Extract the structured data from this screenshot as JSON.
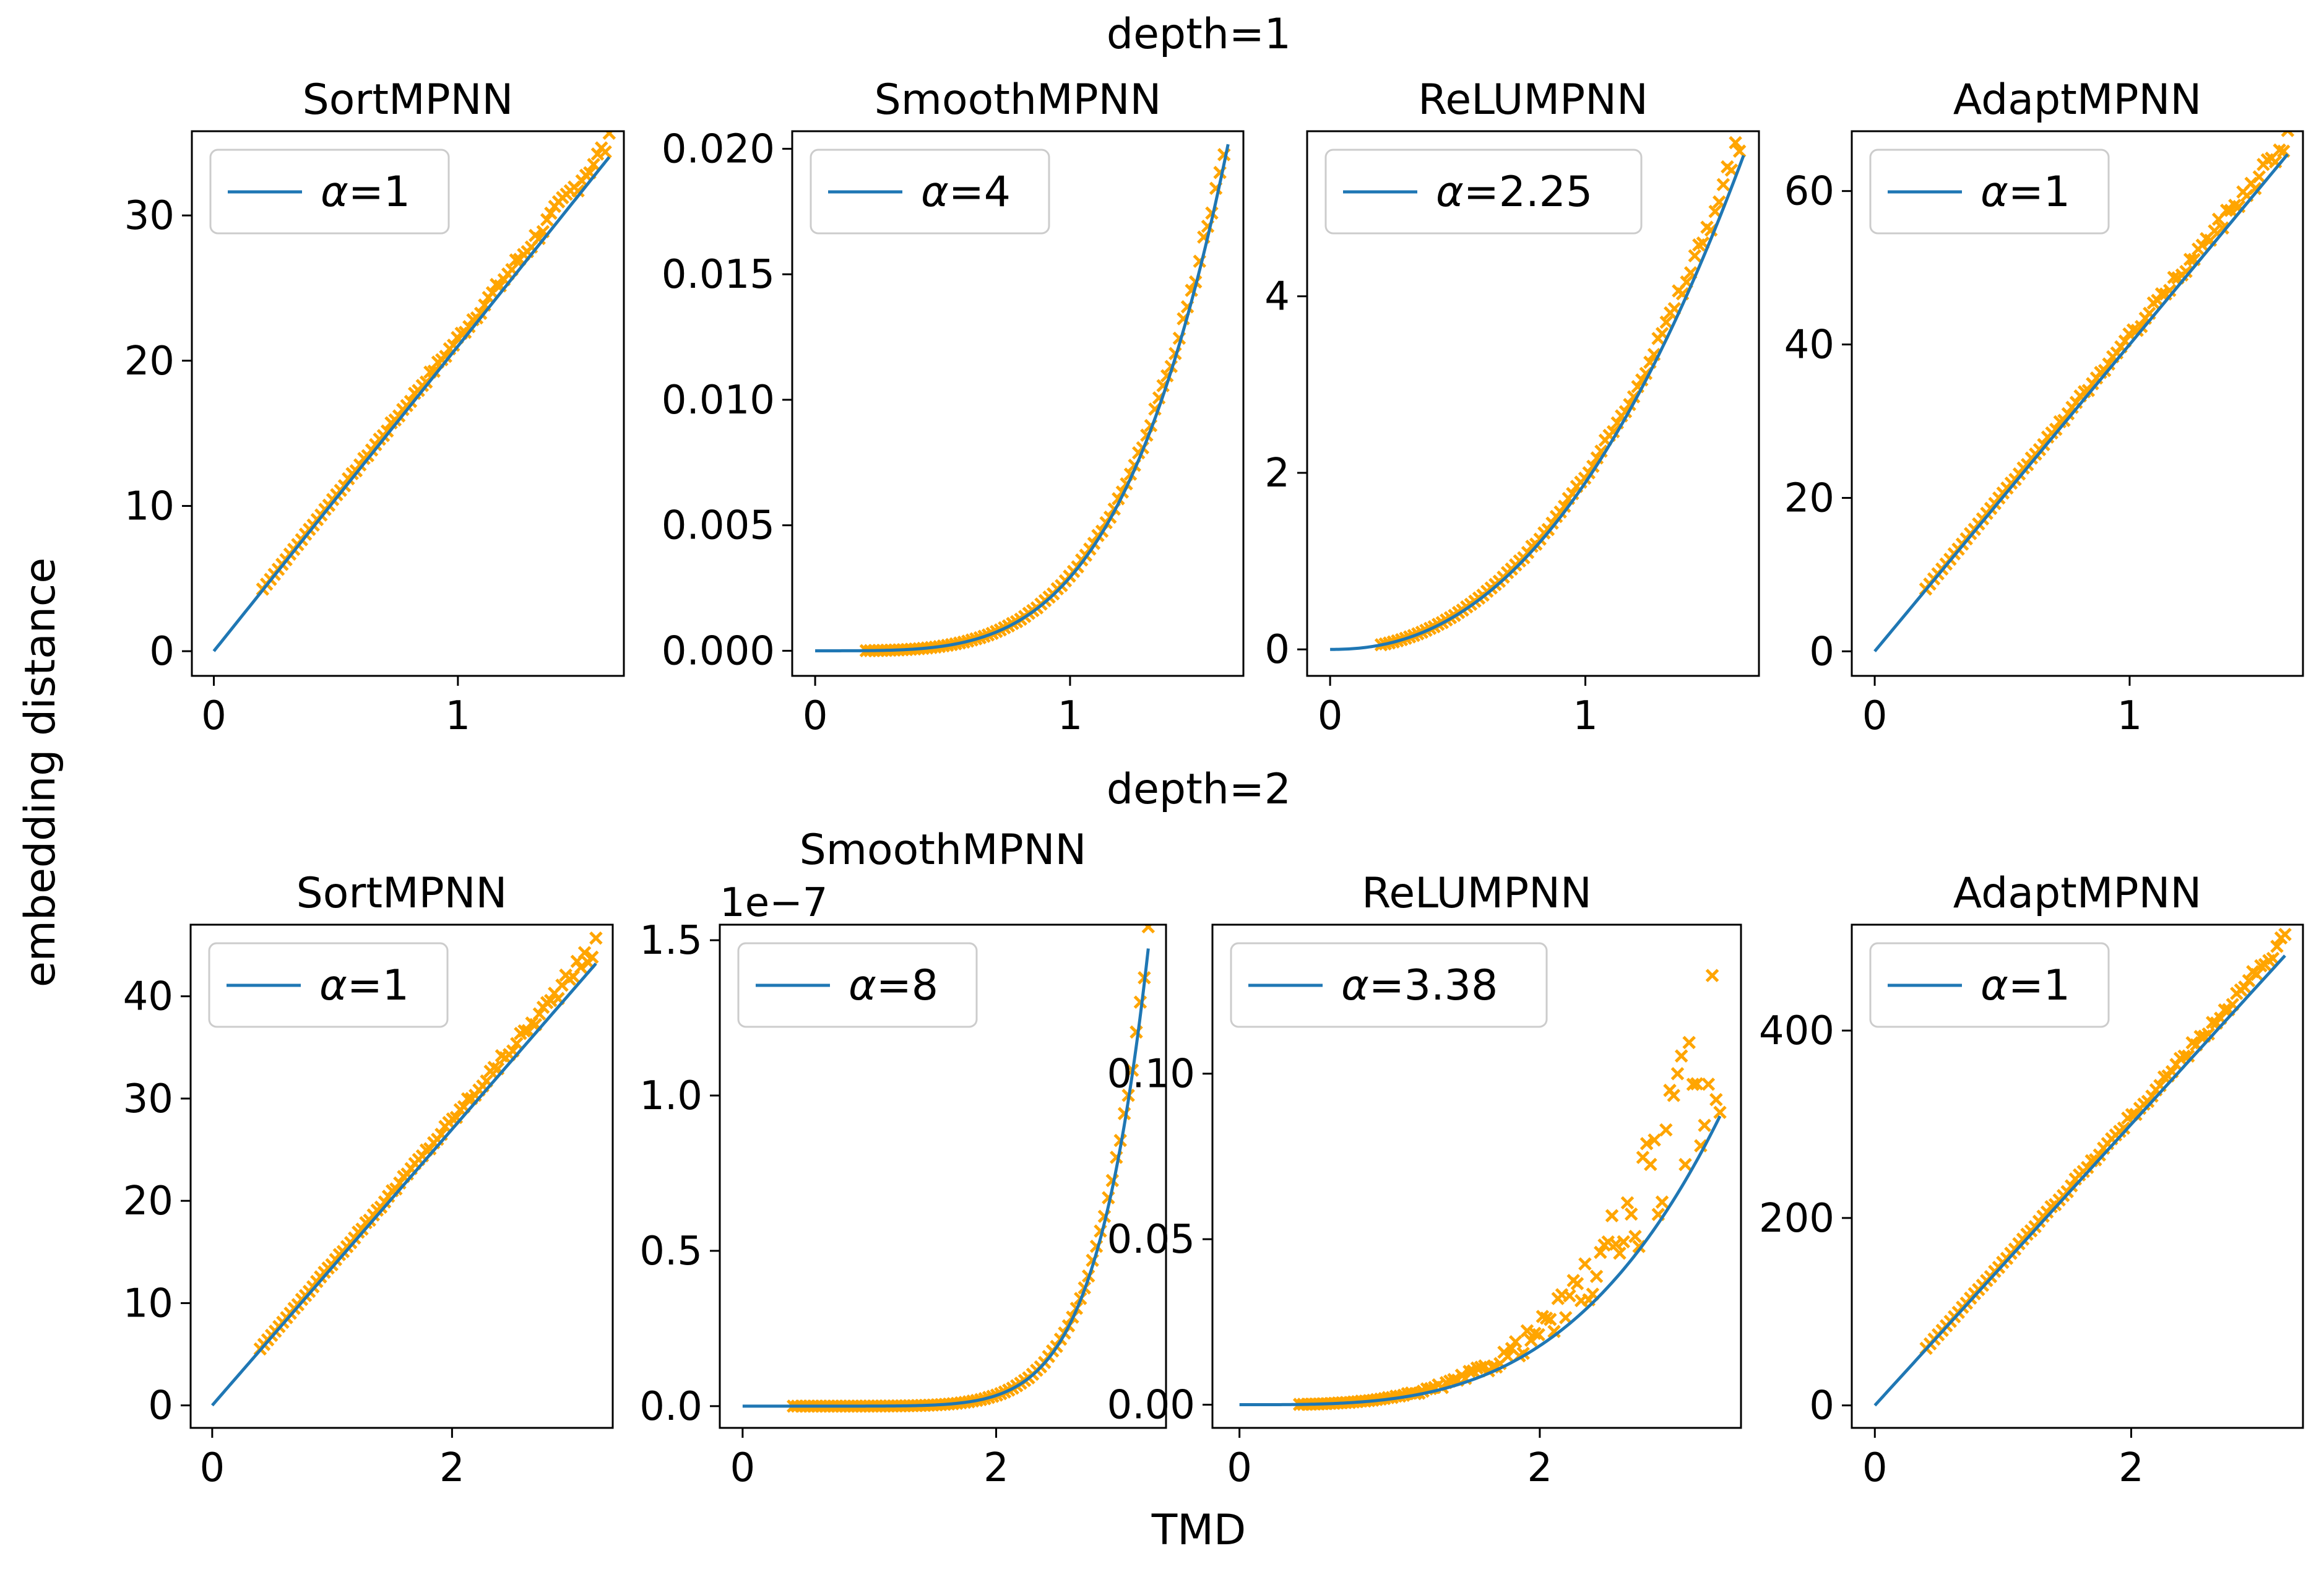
{
  "figure": {
    "xlabel": "TMD",
    "ylabel": "embedding distance",
    "rows": [
      {
        "title": "depth=1"
      },
      {
        "title": "depth=2"
      }
    ],
    "colors": {
      "curve": "#1f77b4",
      "markers": "#ffa500",
      "axes": "#000000"
    },
    "legend_symbol": "α"
  },
  "chart_data": [
    {
      "type": "line",
      "title": "SortMPNN",
      "row": 0,
      "col": 0,
      "legend": "α=1",
      "alpha": 1,
      "scale": 21.0,
      "xlim": [
        -0.09,
        1.68
      ],
      "ylim": [
        -1.7,
        35.8
      ],
      "xticks": [
        0,
        1
      ],
      "yticks": [
        0,
        10,
        20,
        30
      ],
      "ytick_labels": [
        "0",
        "10",
        "20",
        "30"
      ],
      "offset_text": "",
      "series": [
        {
          "name": "α=1",
          "kind": "line"
        },
        {
          "name": "samples",
          "kind": "scatter",
          "marker": "x",
          "x_range": [
            0.2,
            1.62
          ],
          "count": 90,
          "noise": 0.02,
          "bias": 0.03
        }
      ]
    },
    {
      "type": "line",
      "title": "SmoothMPNN",
      "row": 0,
      "col": 1,
      "legend": "α=4",
      "alpha": 4,
      "scale": 0.00293,
      "xlim": [
        -0.09,
        1.68
      ],
      "ylim": [
        -0.001,
        0.0207
      ],
      "xticks": [
        0,
        1
      ],
      "yticks": [
        0,
        0.005,
        0.01,
        0.015,
        0.02
      ],
      "ytick_labels": [
        "0.000",
        "0.005",
        "0.010",
        "0.015",
        "0.020"
      ],
      "offset_text": "",
      "series": [
        {
          "name": "α=4",
          "kind": "line"
        },
        {
          "name": "samples",
          "kind": "scatter",
          "marker": "x",
          "x_range": [
            0.2,
            1.62
          ],
          "count": 90,
          "noise": 0.02,
          "bias": 0.03
        }
      ]
    },
    {
      "type": "line",
      "title": "ReLUMPNN",
      "row": 0,
      "col": 2,
      "legend": "α=2.25",
      "alpha": 2.25,
      "scale": 1.89,
      "xlim": [
        -0.09,
        1.68
      ],
      "ylim": [
        -0.3,
        5.87
      ],
      "xticks": [
        0,
        1
      ],
      "yticks": [
        0,
        2,
        4
      ],
      "ytick_labels": [
        "0",
        "2",
        "4"
      ],
      "offset_text": "",
      "series": [
        {
          "name": "α=2.25",
          "kind": "line"
        },
        {
          "name": "samples",
          "kind": "scatter",
          "marker": "x",
          "x_range": [
            0.2,
            1.62
          ],
          "count": 90,
          "noise": 0.03,
          "bias": 0.05
        }
      ]
    },
    {
      "type": "line",
      "title": "AdaptMPNN",
      "row": 0,
      "col": 3,
      "legend": "α=1",
      "alpha": 1,
      "scale": 40.0,
      "xlim": [
        -0.09,
        1.68
      ],
      "ylim": [
        -3.2,
        67.8
      ],
      "xticks": [
        0,
        1
      ],
      "yticks": [
        0,
        20,
        40,
        60
      ],
      "ytick_labels": [
        "0",
        "20",
        "40",
        "60"
      ],
      "offset_text": "",
      "series": [
        {
          "name": "α=1",
          "kind": "line"
        },
        {
          "name": "samples",
          "kind": "scatter",
          "marker": "x",
          "x_range": [
            0.2,
            1.62
          ],
          "count": 90,
          "noise": 0.02,
          "bias": 0.03
        }
      ]
    },
    {
      "type": "line",
      "title": "SortMPNN",
      "row": 1,
      "col": 0,
      "legend": "α=1",
      "alpha": 1,
      "scale": 13.5,
      "xlim": [
        -0.18,
        3.34
      ],
      "ylim": [
        -2.2,
        47.0
      ],
      "xticks": [
        0,
        2
      ],
      "yticks": [
        0,
        10,
        20,
        30,
        40
      ],
      "ytick_labels": [
        "0",
        "10",
        "20",
        "30",
        "40"
      ],
      "offset_text": "",
      "series": [
        {
          "name": "α=1",
          "kind": "line"
        },
        {
          "name": "samples",
          "kind": "scatter",
          "marker": "x",
          "x_range": [
            0.4,
            3.2
          ],
          "count": 90,
          "noise": 0.02,
          "bias": 0.04
        }
      ]
    },
    {
      "type": "line",
      "title": "SmoothMPNN",
      "row": 1,
      "col": 1,
      "legend": "α=8",
      "alpha": 8,
      "scale": 1.34e-11,
      "xlim": [
        -0.18,
        3.34
      ],
      "ylim": [
        -7e-09,
        1.55e-07
      ],
      "xticks": [
        0,
        2
      ],
      "yticks": [
        0,
        5e-08,
        1e-07,
        1.5e-07
      ],
      "ytick_labels": [
        "0.0",
        "0.5",
        "1.0",
        "1.5"
      ],
      "offset_text": "1e−7",
      "series": [
        {
          "name": "α=8",
          "kind": "line"
        },
        {
          "name": "samples",
          "kind": "scatter",
          "marker": "x",
          "x_range": [
            0.4,
            3.2
          ],
          "count": 90,
          "noise": 0.02,
          "bias": 0.03
        }
      ]
    },
    {
      "type": "line",
      "title": "ReLUMPNN",
      "row": 1,
      "col": 2,
      "legend": "α=3.38",
      "alpha": 3.38,
      "scale": 0.00171,
      "xlim": [
        -0.18,
        3.34
      ],
      "ylim": [
        -0.007,
        0.145
      ],
      "xticks": [
        0,
        2
      ],
      "yticks": [
        0,
        0.05,
        0.1
      ],
      "ytick_labels": [
        "0.00",
        "0.05",
        "0.10"
      ],
      "offset_text": "",
      "series": [
        {
          "name": "α=3.38",
          "kind": "line"
        },
        {
          "name": "samples",
          "kind": "scatter",
          "marker": "x",
          "x_range": [
            0.4,
            3.2
          ],
          "count": 110,
          "noise": 0.35,
          "bias": 0.32
        }
      ]
    },
    {
      "type": "line",
      "title": "AdaptMPNN",
      "row": 1,
      "col": 3,
      "legend": "α=1",
      "alpha": 1,
      "scale": 150.0,
      "xlim": [
        -0.18,
        3.34
      ],
      "ylim": [
        -24.0,
        513.0
      ],
      "xticks": [
        0,
        2
      ],
      "yticks": [
        0,
        200,
        400
      ],
      "ytick_labels": [
        "0",
        "200",
        "400"
      ],
      "offset_text": "",
      "series": [
        {
          "name": "α=1",
          "kind": "line"
        },
        {
          "name": "samples",
          "kind": "scatter",
          "marker": "x",
          "x_range": [
            0.4,
            3.2
          ],
          "count": 90,
          "noise": 0.02,
          "bias": 0.03
        }
      ]
    }
  ]
}
